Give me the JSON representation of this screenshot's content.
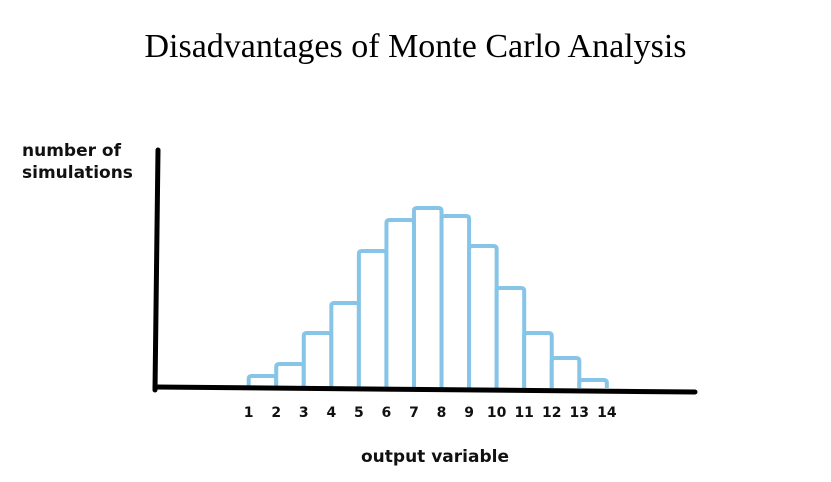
{
  "chart_data": {
    "type": "histogram",
    "title": "Disadvantages of Monte Carlo Analysis",
    "y_label": "number of simulations",
    "x_label": "output variable",
    "bins": [
      1,
      2,
      3,
      4,
      5,
      6,
      7,
      8,
      9,
      10,
      11,
      12,
      13,
      14
    ],
    "values": [
      12,
      24,
      55,
      85,
      137,
      168,
      180,
      172,
      142,
      100,
      55,
      30,
      8
    ],
    "color": "#86c5e8",
    "xlim": [
      -2.4,
      17.2
    ],
    "ylim": [
      0,
      240
    ]
  }
}
